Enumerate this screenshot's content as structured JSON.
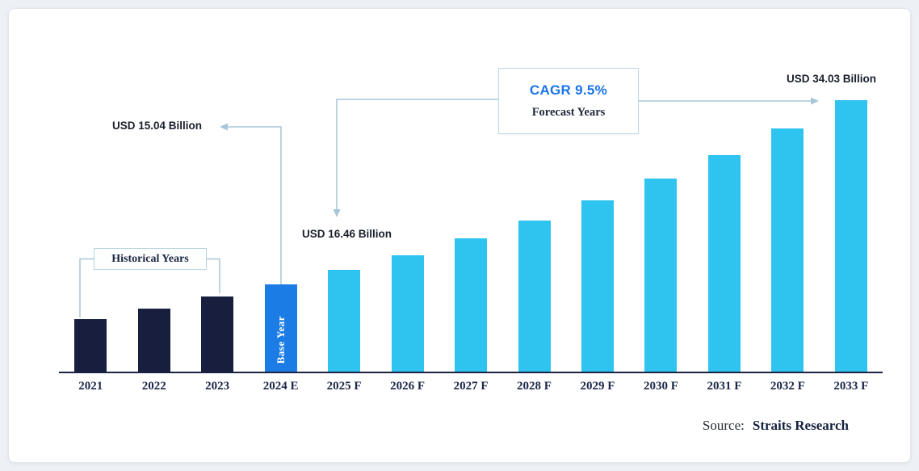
{
  "chart_data": {
    "type": "bar",
    "title": "",
    "categories": [
      "2021",
      "2022",
      "2023",
      "2024 E",
      "2025 F",
      "2026 F",
      "2027 F",
      "2028 F",
      "2029 F",
      "2030 F",
      "2031 F",
      "2032 F",
      "2033 F"
    ],
    "values": [
      11.45,
      12.54,
      13.73,
      15.04,
      16.46,
      18.02,
      19.74,
      21.61,
      23.66,
      25.91,
      28.37,
      31.07,
      34.03
    ],
    "unit": "USD Billion",
    "cagr": "9.5%",
    "ylim": [
      0,
      36
    ],
    "grid": false,
    "legend": false,
    "labeled_points": [
      {
        "category": "2024 E",
        "label": "USD 15.04 Billion"
      },
      {
        "category": "2025 F",
        "label": "USD 16.46 Billion"
      },
      {
        "category": "2033 F",
        "label": "USD 34.03 Billion"
      }
    ],
    "groups": [
      {
        "name": "Historical Years",
        "categories": [
          "2021",
          "2022",
          "2023"
        ],
        "color": "#181f3e"
      },
      {
        "name": "Base Year",
        "categories": [
          "2024 E"
        ],
        "color": "#1c7ce5"
      },
      {
        "name": "Forecast Years",
        "categories": [
          "2025 F",
          "2026 F",
          "2027 F",
          "2028 F",
          "2029 F",
          "2030 F",
          "2031 F",
          "2032 F",
          "2033 F"
        ],
        "color": "#2fc4f0"
      }
    ]
  },
  "annotations": {
    "base_year_value_label": "USD 15.04 Billion",
    "first_forecast_value_label": "USD 16.46 Billion",
    "last_forecast_value_label": "USD 34.03 Billion",
    "cagr_label": "CAGR 9.5%",
    "forecast_years_label": "Forecast Years",
    "historical_years_label": "Historical Years",
    "base_year_bar_label": "Base Year"
  },
  "footer": {
    "source_prefix": "Source:",
    "source_name": "Straits Research"
  },
  "colors": {
    "historical_bar": "#181f3e",
    "base_year_bar": "#1c7ce5",
    "forecast_bar": "#2fc4f0",
    "cagr_accent": "#1a73e8",
    "axis": "#1a2340",
    "connector_lines": "#a7c6d8",
    "page_background": "#edf0f4",
    "card_background": "#ffffff"
  }
}
